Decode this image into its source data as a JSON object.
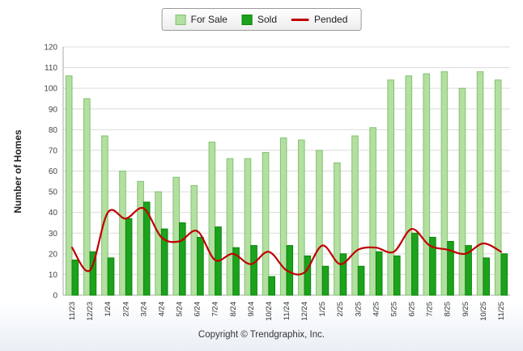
{
  "legend": {
    "for_sale_label": "For Sale",
    "sold_label": "Sold",
    "pended_label": "Pended"
  },
  "footer": "Copyright © Trendgraphix, Inc.",
  "chart_data": {
    "type": "bar",
    "title": "",
    "xlabel": "",
    "ylabel": "Number of Homes",
    "ylim": [
      0,
      120
    ],
    "ytick_step": 10,
    "grid": true,
    "legend_position": "top-center",
    "categories": [
      "11/23",
      "12/23",
      "1/24",
      "2/24",
      "3/24",
      "4/24",
      "5/24",
      "6/24",
      "7/24",
      "8/24",
      "9/24",
      "10/24",
      "11/24",
      "12/24",
      "1/25",
      "2/25",
      "3/25",
      "4/25",
      "5/25",
      "6/25",
      "7/25",
      "8/25",
      "9/25",
      "10/25",
      "11/25"
    ],
    "series": [
      {
        "name": "For Sale",
        "type": "bar",
        "color": "#b3dfa0",
        "border_color": "#83c272",
        "values": [
          106,
          95,
          77,
          60,
          55,
          50,
          57,
          53,
          74,
          66,
          66,
          69,
          76,
          75,
          70,
          64,
          77,
          81,
          104,
          106,
          107,
          108,
          100,
          108,
          104
        ]
      },
      {
        "name": "Sold",
        "type": "bar",
        "color": "#1ca21c",
        "border_color": "#0d860d",
        "values": [
          17,
          21,
          18,
          37,
          45,
          32,
          35,
          28,
          33,
          23,
          24,
          9,
          24,
          19,
          14,
          20,
          14,
          21,
          19,
          30,
          28,
          26,
          24,
          18,
          20
        ]
      },
      {
        "name": "Pended",
        "type": "line",
        "color": "#c00000",
        "values": [
          23,
          12,
          40,
          37,
          42,
          28,
          26,
          31,
          17,
          20,
          15,
          21,
          12,
          11,
          24,
          15,
          22,
          23,
          21,
          32,
          24,
          22,
          20,
          25,
          21
        ]
      }
    ]
  }
}
